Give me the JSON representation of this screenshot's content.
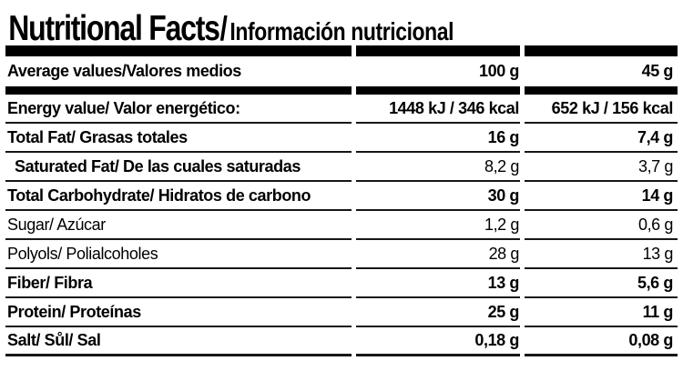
{
  "title": {
    "english": "Nutritional Facts",
    "separator": "/",
    "spanish": "Información nutricional"
  },
  "table": {
    "header": {
      "label": "Average values/Valores medios",
      "col_100g": "100 g",
      "col_45g": "45 g"
    },
    "rows": [
      {
        "label": "Energy value/ Valor energético:",
        "per_100g": "1448 kJ / 346 kcal",
        "per_45g": "652 kJ / 156 kcal"
      },
      {
        "label": "Total Fat/ Grasas totales",
        "per_100g": "16 g",
        "per_45g": "7,4 g"
      },
      {
        "label": "Saturated Fat/ De las cuales saturadas",
        "per_100g": "8,2 g",
        "per_45g": "3,7 g"
      },
      {
        "label": "Total Carbohydrate/ Hidratos de carbono",
        "per_100g": "30 g",
        "per_45g": "14 g"
      },
      {
        "label": "Sugar/ Azúcar",
        "per_100g": "1,2 g",
        "per_45g": "0,6 g"
      },
      {
        "label": "Polyols/ Polialcoholes",
        "per_100g": "28 g",
        "per_45g": "13 g"
      },
      {
        "label": "Fiber/ Fibra",
        "per_100g": "13 g",
        "per_45g": "5,6 g"
      },
      {
        "label": "Protein/ Proteínas",
        "per_100g": "25 g",
        "per_45g": "11 g"
      },
      {
        "label": "Salt/ Sůl/ Sal",
        "per_100g": "0,18 g",
        "per_45g": "0,08 g"
      }
    ]
  },
  "colors": {
    "text": "#000000",
    "rule": "#161616",
    "background": "#ffffff"
  }
}
